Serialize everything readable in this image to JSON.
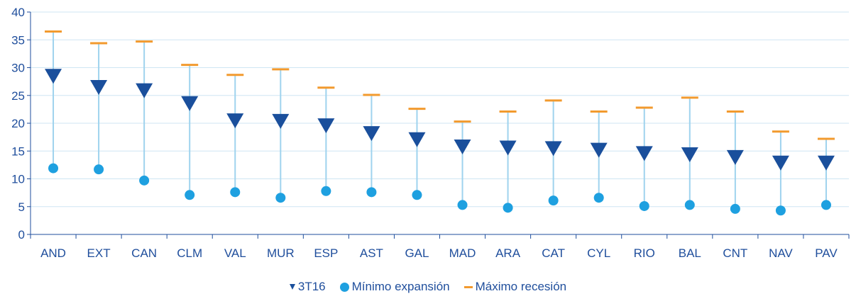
{
  "chart_data": {
    "type": "scatter",
    "categories": [
      "AND",
      "EXT",
      "CAN",
      "CLM",
      "VAL",
      "MUR",
      "ESP",
      "AST",
      "GAL",
      "MAD",
      "ARA",
      "CAT",
      "CYL",
      "RIO",
      "BAL",
      "CNT",
      "NAV",
      "PAV"
    ],
    "series": [
      {
        "name": "3T16",
        "marker": "triangle-down",
        "color": "#1a4f9c",
        "values": [
          28.5,
          26.5,
          25.9,
          23.6,
          20.5,
          20.4,
          19.6,
          18.2,
          17.1,
          15.8,
          15.6,
          15.5,
          15.2,
          14.6,
          14.4,
          13.9,
          12.9,
          12.9
        ]
      },
      {
        "name": "Mínimo expansión",
        "marker": "circle",
        "color": "#1ea0e0",
        "values": [
          11.9,
          11.7,
          9.7,
          7.1,
          7.6,
          6.6,
          7.8,
          7.6,
          7.1,
          5.3,
          4.8,
          6.1,
          6.6,
          5.1,
          5.3,
          4.6,
          4.3,
          5.3
        ]
      },
      {
        "name": "Máximo recesión",
        "marker": "dash",
        "color": "#f29a2e",
        "values": [
          36.5,
          34.4,
          34.7,
          30.5,
          28.7,
          29.7,
          26.4,
          25.1,
          22.6,
          20.3,
          22.1,
          24.1,
          22.1,
          22.8,
          24.6,
          22.1,
          18.5,
          17.2
        ]
      }
    ],
    "ylim": [
      0,
      40
    ],
    "yticks": [
      0,
      5,
      10,
      15,
      20,
      25,
      30,
      35,
      40
    ],
    "grid": true,
    "legend_position": "bottom",
    "title": "",
    "xlabel": "",
    "ylabel": ""
  }
}
